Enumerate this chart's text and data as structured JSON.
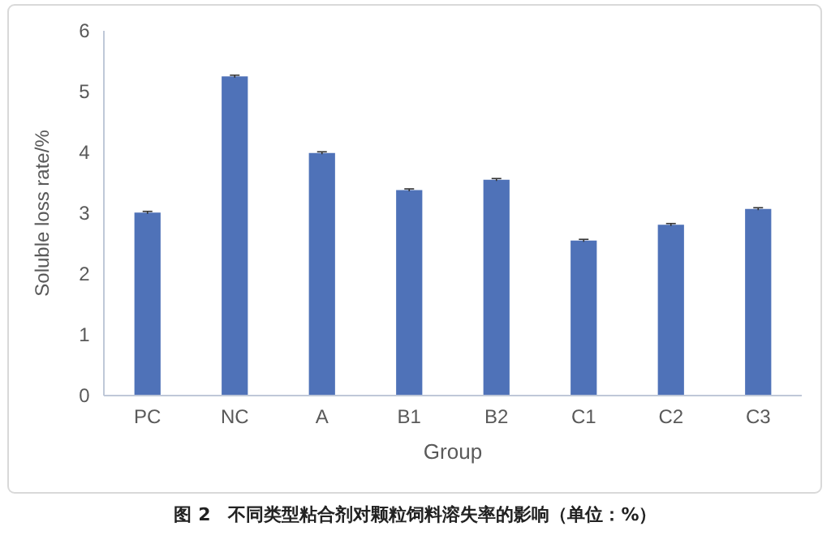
{
  "chart_data": {
    "type": "bar",
    "xlabel": "Group",
    "ylabel": "Soluble loss rate/%",
    "annotations": [
      "图 2　不同类型粘合剂对颗粒饲料溶失率的影响（单位：%）"
    ],
    "categories": [
      "PC",
      "NC",
      "A",
      "B1",
      "B2",
      "C1",
      "C2",
      "C3"
    ],
    "values": [
      3.01,
      5.25,
      3.99,
      3.38,
      3.55,
      2.55,
      2.81,
      3.07
    ],
    "errors": [
      0.02,
      0.02,
      0.02,
      0.02,
      0.02,
      0.02,
      0.02,
      0.02
    ],
    "color": "#4f72b8",
    "ylim": [
      0,
      6
    ],
    "yticks": [
      0,
      1,
      2,
      3,
      4,
      5,
      6
    ],
    "grid": false
  }
}
